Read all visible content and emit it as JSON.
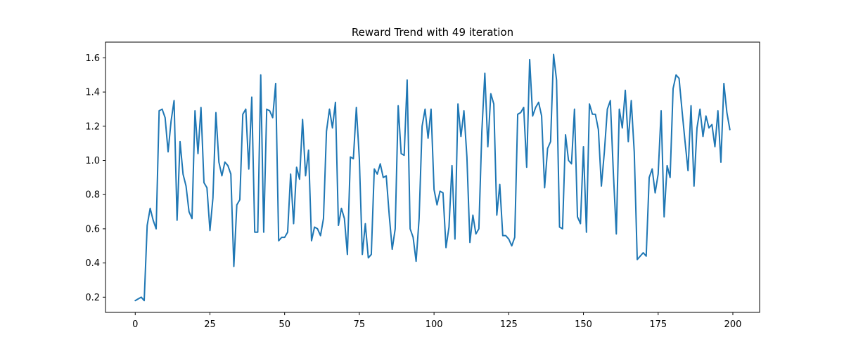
{
  "chart_data": {
    "type": "line",
    "title": "Reward Trend with 49 iteration",
    "xlabel": "",
    "ylabel": "",
    "xlim": [
      -9.95,
      208.95
    ],
    "ylim": [
      0.111,
      1.692
    ],
    "xticks": [
      0,
      25,
      50,
      75,
      100,
      125,
      150,
      175,
      200
    ],
    "yticks": [
      0.2,
      0.4,
      0.6,
      0.8,
      1.0,
      1.2,
      1.4,
      1.6
    ],
    "xtick_labels": [
      "0",
      "25",
      "50",
      "75",
      "100",
      "125",
      "150",
      "175",
      "200"
    ],
    "ytick_labels": [
      "0.2",
      "0.4",
      "0.6",
      "0.8",
      "1.0",
      "1.2",
      "1.4",
      "1.6"
    ],
    "grid": false,
    "line_color": "#1f77b4",
    "series": [
      {
        "name": "",
        "x": [
          0,
          1,
          2,
          3,
          4,
          5,
          6,
          7,
          8,
          9,
          10,
          11,
          12,
          13,
          14,
          15,
          16,
          17,
          18,
          19,
          20,
          21,
          22,
          23,
          24,
          25,
          26,
          27,
          28,
          29,
          30,
          31,
          32,
          33,
          34,
          35,
          36,
          37,
          38,
          39,
          40,
          41,
          42,
          43,
          44,
          45,
          46,
          47,
          48,
          49,
          50,
          51,
          52,
          53,
          54,
          55,
          56,
          57,
          58,
          59,
          60,
          61,
          62,
          63,
          64,
          65,
          66,
          67,
          68,
          69,
          70,
          71,
          72,
          73,
          74,
          75,
          76,
          77,
          78,
          79,
          80,
          81,
          82,
          83,
          84,
          85,
          86,
          87,
          88,
          89,
          90,
          91,
          92,
          93,
          94,
          95,
          96,
          97,
          98,
          99,
          100,
          101,
          102,
          103,
          104,
          105,
          106,
          107,
          108,
          109,
          110,
          111,
          112,
          113,
          114,
          115,
          116,
          117,
          118,
          119,
          120,
          121,
          122,
          123,
          124,
          125,
          126,
          127,
          128,
          129,
          130,
          131,
          132,
          133,
          134,
          135,
          136,
          137,
          138,
          139,
          140,
          141,
          142,
          143,
          144,
          145,
          146,
          147,
          148,
          149,
          150,
          151,
          152,
          153,
          154,
          155,
          156,
          157,
          158,
          159,
          160,
          161,
          162,
          163,
          164,
          165,
          166,
          167,
          168,
          169,
          170,
          171,
          172,
          173,
          174,
          175,
          176,
          177,
          178,
          179,
          180,
          181,
          182,
          183,
          184,
          185,
          186,
          187,
          188,
          189,
          190,
          191,
          192,
          193,
          194,
          195,
          196,
          197,
          198,
          199
        ],
        "values": [
          0.18,
          0.19,
          0.2,
          0.18,
          0.62,
          0.72,
          0.65,
          0.6,
          1.29,
          1.3,
          1.25,
          1.05,
          1.23,
          1.35,
          0.65,
          1.11,
          0.92,
          0.85,
          0.7,
          0.66,
          1.29,
          1.04,
          1.31,
          0.87,
          0.84,
          0.59,
          0.78,
          1.28,
          0.99,
          0.91,
          0.99,
          0.97,
          0.92,
          0.38,
          0.74,
          0.77,
          1.27,
          1.3,
          0.95,
          1.37,
          0.58,
          0.58,
          1.5,
          0.58,
          1.3,
          1.29,
          1.25,
          1.45,
          0.53,
          0.55,
          0.55,
          0.58,
          0.92,
          0.63,
          0.96,
          0.89,
          1.24,
          0.91,
          1.06,
          0.53,
          0.61,
          0.6,
          0.56,
          0.66,
          1.17,
          1.3,
          1.19,
          1.34,
          0.62,
          0.72,
          0.66,
          0.45,
          1.02,
          1.01,
          1.31,
          1.01,
          0.45,
          0.63,
          0.43,
          0.45,
          0.95,
          0.92,
          0.98,
          0.9,
          0.91,
          0.68,
          0.48,
          0.6,
          1.32,
          1.04,
          1.03,
          1.47,
          0.6,
          0.55,
          0.41,
          0.66,
          1.2,
          1.3,
          1.13,
          1.3,
          0.83,
          0.74,
          0.82,
          0.81,
          0.49,
          0.61,
          0.97,
          0.54,
          1.33,
          1.14,
          1.29,
          1.02,
          0.52,
          0.68,
          0.57,
          0.6,
          1.17,
          1.51,
          1.08,
          1.39,
          1.33,
          0.68,
          0.86,
          0.56,
          0.56,
          0.54,
          0.5,
          0.55,
          1.27,
          1.28,
          1.31,
          0.96,
          1.59,
          1.26,
          1.31,
          1.34,
          1.26,
          0.84,
          1.07,
          1.11,
          1.62,
          1.47,
          0.61,
          0.6,
          1.15,
          1.0,
          0.98,
          1.3,
          0.67,
          0.63,
          1.08,
          0.58,
          1.33,
          1.27,
          1.27,
          1.18,
          0.85,
          1.05,
          1.3,
          1.35,
          0.93,
          0.57,
          1.3,
          1.19,
          1.41,
          1.11,
          1.35,
          1.05,
          0.42,
          0.44,
          0.46,
          0.44,
          0.9,
          0.95,
          0.81,
          0.92,
          1.29,
          0.67,
          0.97,
          0.9,
          1.42,
          1.5,
          1.48,
          1.29,
          1.11,
          0.94,
          1.32,
          0.85,
          1.19,
          1.3,
          1.14,
          1.26,
          1.19,
          1.21,
          1.08,
          1.29,
          0.99,
          1.45,
          1.28,
          1.18
        ]
      }
    ]
  }
}
